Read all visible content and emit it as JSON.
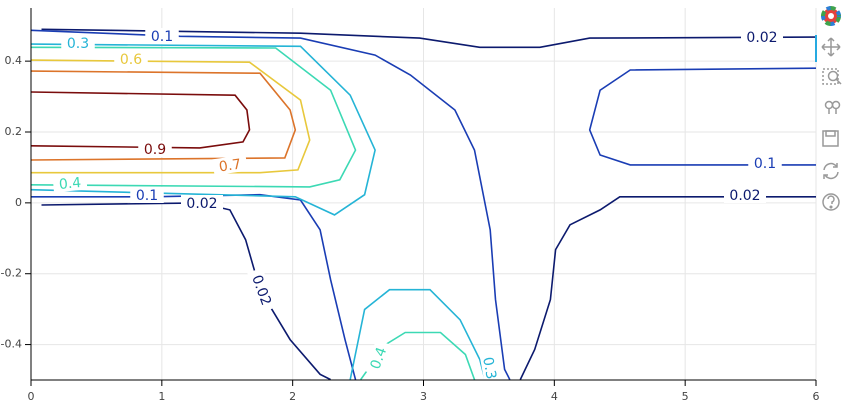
{
  "chart_data": {
    "type": "contour",
    "xlim": [
      0,
      6
    ],
    "ylim": [
      -0.5,
      0.55
    ],
    "xticks": [
      0,
      1,
      2,
      3,
      4,
      5,
      6
    ],
    "yticks": [
      -0.4,
      -0.2,
      0,
      0.2,
      0.4
    ],
    "grid": true,
    "contours": [
      {
        "level": 0.02,
        "label": "0.02",
        "color": "#0c1a6e",
        "lines": [
          [
            [
              0.08,
              0.49
            ],
            [
              2.06,
              0.479
            ],
            [
              2.97,
              0.465
            ],
            [
              3.43,
              0.439
            ],
            [
              3.89,
              0.439
            ],
            [
              4.27,
              0.465
            ],
            [
              6,
              0.468
            ]
          ],
          [
            [
              6,
              0.017
            ],
            [
              4.5,
              0.017
            ],
            [
              4.35,
              -0.02
            ],
            [
              4.12,
              -0.062
            ],
            [
              4.01,
              -0.132
            ],
            [
              3.97,
              -0.273
            ],
            [
              3.85,
              -0.414
            ],
            [
              3.74,
              -0.499
            ]
          ],
          [
            [
              0.08,
              -0.006
            ],
            [
              1.29,
              0
            ],
            [
              1.52,
              -0.02
            ],
            [
              1.64,
              -0.104
            ],
            [
              1.75,
              -0.245
            ],
            [
              1.98,
              -0.386
            ],
            [
              2.21,
              -0.484
            ],
            [
              2.29,
              -0.499
            ]
          ]
        ]
      },
      {
        "level": 0.1,
        "label": "0.1",
        "color": "#1a3db4",
        "lines": [
          [
            [
              0,
              0.487
            ],
            [
              1.14,
              0.47
            ],
            [
              2.06,
              0.465
            ],
            [
              2.63,
              0.417
            ],
            [
              2.9,
              0.361
            ],
            [
              3.24,
              0.262
            ],
            [
              3.39,
              0.149
            ],
            [
              3.51,
              -0.076
            ],
            [
              3.55,
              -0.273
            ],
            [
              3.62,
              -0.47
            ],
            [
              3.66,
              -0.499
            ]
          ],
          [
            [
              0,
              0.017
            ],
            [
              0.91,
              0.017
            ],
            [
              1.75,
              0.023
            ],
            [
              2.06,
              0.008
            ],
            [
              2.21,
              -0.076
            ],
            [
              2.29,
              -0.217
            ],
            [
              2.4,
              -0.386
            ],
            [
              2.48,
              -0.499
            ]
          ],
          [
            [
              6,
              0.38
            ],
            [
              4.58,
              0.375
            ],
            [
              4.35,
              0.318
            ],
            [
              4.27,
              0.206
            ],
            [
              4.35,
              0.135
            ],
            [
              4.58,
              0.107
            ],
            [
              6,
              0.107
            ]
          ]
        ]
      },
      {
        "level": 0.3,
        "label": "0.3",
        "color": "#25b4d6",
        "lines": [
          [
            [
              0,
              0.448
            ],
            [
              2.06,
              0.442
            ],
            [
              2.44,
              0.304
            ],
            [
              2.63,
              0.149
            ],
            [
              2.55,
              0.023
            ],
            [
              2.32,
              -0.034
            ],
            [
              2.02,
              0.017
            ],
            [
              0,
              0.037
            ]
          ],
          [
            [
              2.44,
              -0.499
            ],
            [
              2.55,
              -0.301
            ],
            [
              2.74,
              -0.245
            ],
            [
              3.05,
              -0.245
            ],
            [
              3.28,
              -0.33
            ],
            [
              3.43,
              -0.442
            ],
            [
              3.47,
              -0.499
            ]
          ]
        ]
      },
      {
        "level": 0.4,
        "label": "0.4",
        "color": "#3cd9b4",
        "lines": [
          [
            [
              0,
              0.439
            ],
            [
              1.87,
              0.437
            ],
            [
              2.29,
              0.318
            ],
            [
              2.48,
              0.149
            ],
            [
              2.36,
              0.065
            ],
            [
              2.13,
              0.045
            ],
            [
              0,
              0.051
            ]
          ],
          [
            [
              2.52,
              -0.499
            ],
            [
              2.71,
              -0.4
            ],
            [
              2.86,
              -0.366
            ],
            [
              3.13,
              -0.366
            ],
            [
              3.32,
              -0.428
            ],
            [
              3.39,
              -0.499
            ]
          ]
        ]
      },
      {
        "level": 0.6,
        "label": "0.6",
        "color": "#e8c83c",
        "lines": [
          [
            [
              0,
              0.403
            ],
            [
              1.67,
              0.397
            ],
            [
              2.06,
              0.29
            ],
            [
              2.13,
              0.177
            ],
            [
              2.04,
              0.093
            ],
            [
              1.75,
              0.085
            ],
            [
              0,
              0.085
            ]
          ]
        ]
      },
      {
        "level": 0.7,
        "label": "0.7",
        "color": "#dc742a",
        "lines": [
          [
            [
              0,
              0.372
            ],
            [
              1.75,
              0.366
            ],
            [
              1.98,
              0.262
            ],
            [
              2.02,
              0.206
            ],
            [
              1.94,
              0.127
            ],
            [
              0,
              0.121
            ]
          ]
        ]
      },
      {
        "level": 0.9,
        "label": "0.9",
        "color": "#7a0c0c",
        "lines": [
          [
            [
              0,
              0.313
            ],
            [
              1.56,
              0.304
            ],
            [
              1.65,
              0.262
            ],
            [
              1.67,
              0.206
            ],
            [
              1.62,
              0.172
            ],
            [
              1.29,
              0.155
            ],
            [
              0,
              0.161
            ]
          ]
        ]
      }
    ]
  }
}
